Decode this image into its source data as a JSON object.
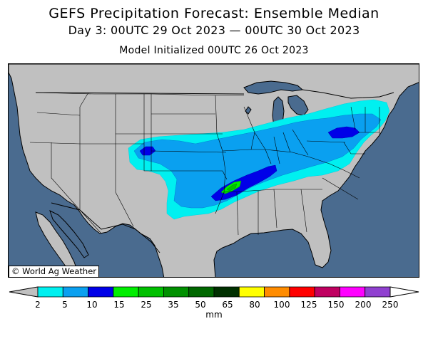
{
  "header": {
    "title": "GEFS Precipitation Forecast: Ensemble Median",
    "period": "Day 3: 00UTC 29 Oct 2023 — 00UTC 30 Oct 2023",
    "initialized": "Model Initialized 00UTC 26 Oct 2023"
  },
  "map": {
    "credit": "© World Ag Weather",
    "ocean_color": "#4a6b8f",
    "land_color": "#c0c0c0"
  },
  "legend": {
    "units": "mm",
    "labels": [
      "2",
      "5",
      "10",
      "15",
      "25",
      "35",
      "50",
      "65",
      "80",
      "100",
      "125",
      "150",
      "200",
      "250"
    ],
    "colors": [
      "#00f0f0",
      "#0aa0f0",
      "#0000e8",
      "#00ee00",
      "#00c000",
      "#009000",
      "#006800",
      "#003000",
      "#ffff00",
      "#ff8c00",
      "#ff0000",
      "#c00060",
      "#ff00ff",
      "#9040d0"
    ],
    "under_color": "#c0c0c0",
    "over_color": "#ffffff"
  }
}
